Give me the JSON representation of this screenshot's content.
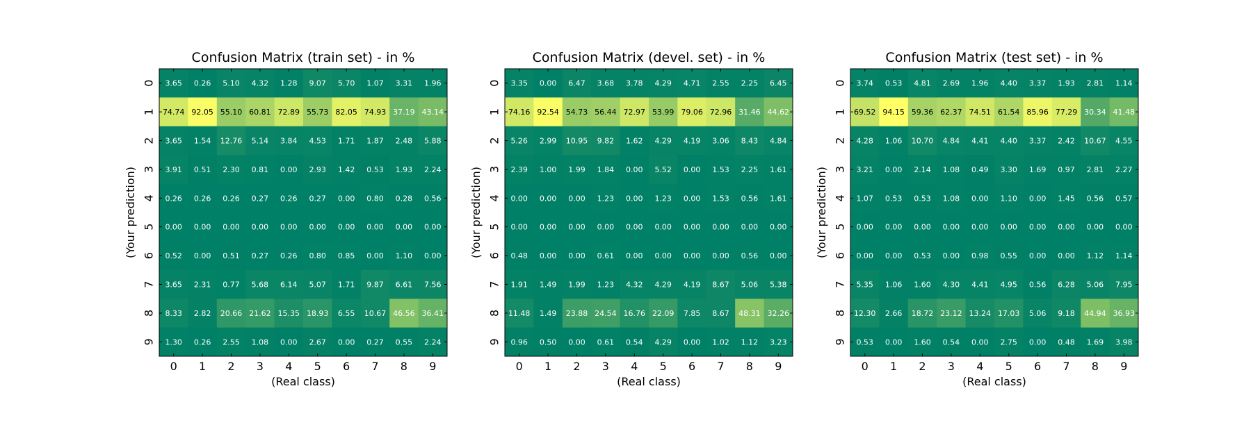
{
  "chart_data": [
    {
      "type": "heatmap",
      "title": "Confusion Matrix (train set) - in %",
      "xlabel": "(Real class)",
      "ylabel": "(Your prediction)",
      "x_ticks": [
        "0",
        "1",
        "2",
        "3",
        "4",
        "5",
        "6",
        "7",
        "8",
        "9"
      ],
      "y_ticks": [
        "0",
        "1",
        "2",
        "3",
        "4",
        "5",
        "6",
        "7",
        "8",
        "9"
      ],
      "values": [
        [
          "3.65",
          "0.26",
          "5.10",
          "4.32",
          "1.28",
          "9.07",
          "5.70",
          "1.07",
          "3.31",
          "1.96"
        ],
        [
          "74.74",
          "92.05",
          "55.10",
          "60.81",
          "72.89",
          "55.73",
          "82.05",
          "74.93",
          "37.19",
          "43.14"
        ],
        [
          "3.65",
          "1.54",
          "12.76",
          "5.14",
          "3.84",
          "4.53",
          "1.71",
          "1.87",
          "2.48",
          "5.88"
        ],
        [
          "3.91",
          "0.51",
          "2.30",
          "0.81",
          "0.00",
          "2.93",
          "1.42",
          "0.53",
          "1.93",
          "2.24"
        ],
        [
          "0.26",
          "0.26",
          "0.26",
          "0.27",
          "0.26",
          "0.27",
          "0.00",
          "0.80",
          "0.28",
          "0.56"
        ],
        [
          "0.00",
          "0.00",
          "0.00",
          "0.00",
          "0.00",
          "0.00",
          "0.00",
          "0.00",
          "0.00",
          "0.00"
        ],
        [
          "0.52",
          "0.00",
          "0.51",
          "0.27",
          "0.26",
          "0.80",
          "0.85",
          "0.00",
          "1.10",
          "0.00"
        ],
        [
          "3.65",
          "2.31",
          "0.77",
          "5.68",
          "6.14",
          "5.07",
          "1.71",
          "9.87",
          "6.61",
          "7.56"
        ],
        [
          "8.33",
          "2.82",
          "20.66",
          "21.62",
          "15.35",
          "18.93",
          "6.55",
          "10.67",
          "46.56",
          "36.41"
        ],
        [
          "1.30",
          "0.26",
          "2.55",
          "1.08",
          "0.00",
          "2.67",
          "0.00",
          "0.27",
          "0.55",
          "2.24"
        ]
      ]
    },
    {
      "type": "heatmap",
      "title": "Confusion Matrix (devel. set) - in %",
      "xlabel": "(Real class)",
      "ylabel": "(Your prediction)",
      "x_ticks": [
        "0",
        "1",
        "2",
        "3",
        "4",
        "5",
        "6",
        "7",
        "8",
        "9"
      ],
      "y_ticks": [
        "0",
        "1",
        "2",
        "3",
        "4",
        "5",
        "6",
        "7",
        "8",
        "9"
      ],
      "values": [
        [
          "3.35",
          "0.00",
          "6.47",
          "3.68",
          "3.78",
          "4.29",
          "4.71",
          "2.55",
          "2.25",
          "6.45"
        ],
        [
          "74.16",
          "92.54",
          "54.73",
          "56.44",
          "72.97",
          "53.99",
          "79.06",
          "72.96",
          "31.46",
          "44.62"
        ],
        [
          "5.26",
          "2.99",
          "10.95",
          "9.82",
          "1.62",
          "4.29",
          "4.19",
          "3.06",
          "8.43",
          "4.84"
        ],
        [
          "2.39",
          "1.00",
          "1.99",
          "1.84",
          "0.00",
          "5.52",
          "0.00",
          "1.53",
          "2.25",
          "1.61"
        ],
        [
          "0.00",
          "0.00",
          "0.00",
          "1.23",
          "0.00",
          "1.23",
          "0.00",
          "1.53",
          "0.56",
          "1.61"
        ],
        [
          "0.00",
          "0.00",
          "0.00",
          "0.00",
          "0.00",
          "0.00",
          "0.00",
          "0.00",
          "0.00",
          "0.00"
        ],
        [
          "0.48",
          "0.00",
          "0.00",
          "0.61",
          "0.00",
          "0.00",
          "0.00",
          "0.00",
          "0.56",
          "0.00"
        ],
        [
          "1.91",
          "1.49",
          "1.99",
          "1.23",
          "4.32",
          "4.29",
          "4.19",
          "8.67",
          "5.06",
          "5.38"
        ],
        [
          "11.48",
          "1.49",
          "23.88",
          "24.54",
          "16.76",
          "22.09",
          "7.85",
          "8.67",
          "48.31",
          "32.26"
        ],
        [
          "0.96",
          "0.50",
          "0.00",
          "0.61",
          "0.54",
          "4.29",
          "0.00",
          "1.02",
          "1.12",
          "3.23"
        ]
      ]
    },
    {
      "type": "heatmap",
      "title": "Confusion Matrix (test set) - in %",
      "xlabel": "(Real class)",
      "ylabel": "(Your prediction)",
      "x_ticks": [
        "0",
        "1",
        "2",
        "3",
        "4",
        "5",
        "6",
        "7",
        "8",
        "9"
      ],
      "y_ticks": [
        "0",
        "1",
        "2",
        "3",
        "4",
        "5",
        "6",
        "7",
        "8",
        "9"
      ],
      "values": [
        [
          "3.74",
          "0.53",
          "4.81",
          "2.69",
          "1.96",
          "4.40",
          "3.37",
          "1.93",
          "2.81",
          "1.14"
        ],
        [
          "69.52",
          "94.15",
          "59.36",
          "62.37",
          "74.51",
          "61.54",
          "85.96",
          "77.29",
          "30.34",
          "41.48"
        ],
        [
          "4.28",
          "1.06",
          "10.70",
          "4.84",
          "4.41",
          "4.40",
          "3.37",
          "2.42",
          "10.67",
          "4.55"
        ],
        [
          "3.21",
          "0.00",
          "2.14",
          "1.08",
          "0.49",
          "3.30",
          "1.69",
          "0.97",
          "2.81",
          "2.27"
        ],
        [
          "1.07",
          "0.53",
          "0.53",
          "1.08",
          "0.00",
          "1.10",
          "0.00",
          "1.45",
          "0.56",
          "0.57"
        ],
        [
          "0.00",
          "0.00",
          "0.00",
          "0.00",
          "0.00",
          "0.00",
          "0.00",
          "0.00",
          "0.00",
          "0.00"
        ],
        [
          "0.00",
          "0.00",
          "0.53",
          "0.00",
          "0.98",
          "0.55",
          "0.00",
          "0.00",
          "1.12",
          "1.14"
        ],
        [
          "5.35",
          "1.06",
          "1.60",
          "4.30",
          "4.41",
          "4.95",
          "0.56",
          "6.28",
          "5.06",
          "7.95"
        ],
        [
          "12.30",
          "2.66",
          "18.72",
          "23.12",
          "13.24",
          "17.03",
          "5.06",
          "9.18",
          "44.94",
          "36.93"
        ],
        [
          "0.53",
          "0.00",
          "1.60",
          "0.54",
          "0.00",
          "2.75",
          "0.00",
          "0.48",
          "1.69",
          "3.98"
        ]
      ]
    }
  ]
}
